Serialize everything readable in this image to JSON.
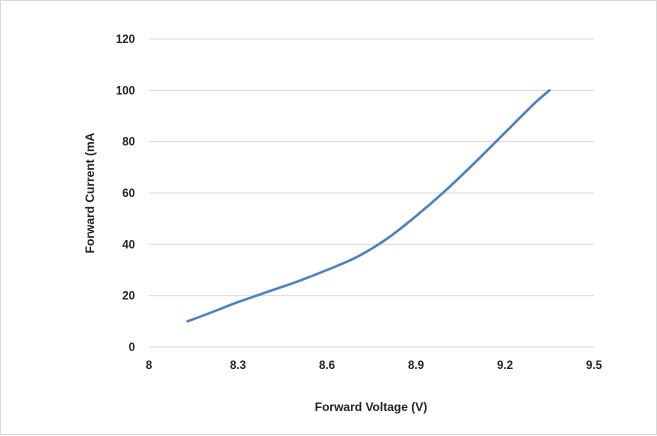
{
  "chart_data": {
    "type": "line",
    "title": "",
    "xlabel": "Forward Voltage (V)",
    "ylabel": "Forward Current (mA",
    "xlim": [
      8,
      9.5
    ],
    "ylim": [
      0,
      120
    ],
    "x_ticks": [
      "8",
      "8.3",
      "8.6",
      "8.9",
      "9.2",
      "9.5"
    ],
    "y_ticks": [
      "0",
      "20",
      "40",
      "60",
      "80",
      "100",
      "120"
    ],
    "grid": "horizontal",
    "legend": "none",
    "series": [
      {
        "color": "#4f81bd",
        "x": [
          8.13,
          8.2,
          8.3,
          8.4,
          8.5,
          8.6,
          8.7,
          8.8,
          8.9,
          9.0,
          9.1,
          9.2,
          9.3,
          9.35
        ],
        "y": [
          10,
          13,
          17.5,
          21.5,
          25.5,
          30,
          35,
          42,
          51,
          61,
          72,
          83.5,
          95,
          100
        ]
      }
    ]
  }
}
